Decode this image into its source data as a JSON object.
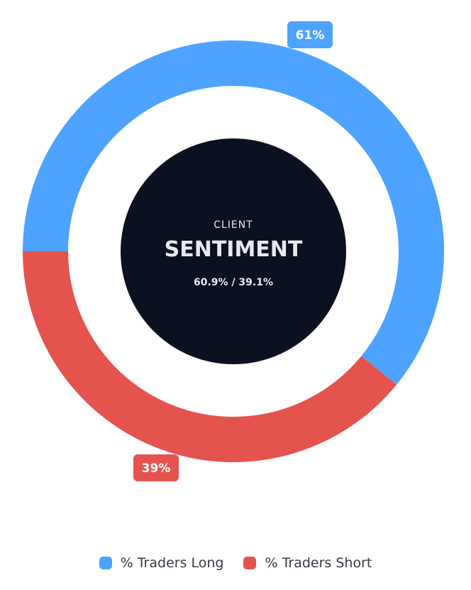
{
  "chart_data": {
    "type": "pie",
    "subtype": "donut",
    "categories": [
      "% Traders Long",
      "% Traders Short"
    ],
    "values": [
      60.9,
      39.1
    ],
    "value_labels": [
      "61%",
      "39%"
    ],
    "colors": [
      "#4da3ff",
      "#e5534f"
    ],
    "center": {
      "caption": "CLIENT",
      "title": "SENTIMENT",
      "ratio": "60.9% / 39.1%",
      "fill": "#0b1120"
    },
    "legend_position": "bottom-center"
  }
}
